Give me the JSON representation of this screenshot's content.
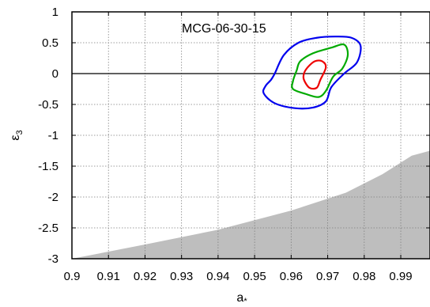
{
  "chart_data": {
    "type": "line",
    "annotation": "MCG-06-30-15",
    "xlabel": "a",
    "xlabel_sub": "*",
    "ylabel": "ε",
    "ylabel_sub": "3",
    "xlim": [
      0.9,
      0.998
    ],
    "ylim": [
      -3,
      1
    ],
    "xticks": [
      0.9,
      0.91,
      0.92,
      0.93,
      0.94,
      0.95,
      0.96,
      0.97,
      0.98,
      0.99
    ],
    "xtick_labels": [
      "0.9",
      "0.91",
      "0.92",
      "0.93",
      "0.94",
      "0.95",
      "0.96",
      "0.97",
      "0.98",
      "0.99"
    ],
    "yticks": [
      1,
      0.5,
      0,
      -0.5,
      -1,
      -1.5,
      -2,
      -2.5,
      -3
    ],
    "ytick_labels": [
      "1",
      "0.5",
      "0",
      "-0.5",
      "-1",
      "-1.5",
      "-2",
      "-2.5",
      "-3"
    ],
    "grid": true,
    "reference_line_y": 0,
    "excluded_region": {
      "color": "#bebebe",
      "boundary": [
        {
          "x": 0.9,
          "y": -3.0
        },
        {
          "x": 0.92,
          "y": -2.77
        },
        {
          "x": 0.94,
          "y": -2.53
        },
        {
          "x": 0.96,
          "y": -2.22
        },
        {
          "x": 0.975,
          "y": -1.93
        },
        {
          "x": 0.985,
          "y": -1.63
        },
        {
          "x": 0.993,
          "y": -1.33
        },
        {
          "x": 0.998,
          "y": -1.25
        }
      ]
    },
    "series": [
      {
        "color": "#0000ee",
        "points": [
          {
            "x": 0.9555,
            "y": 0.0
          },
          {
            "x": 0.958,
            "y": 0.3
          },
          {
            "x": 0.962,
            "y": 0.5
          },
          {
            "x": 0.967,
            "y": 0.58
          },
          {
            "x": 0.972,
            "y": 0.6
          },
          {
            "x": 0.9765,
            "y": 0.58
          },
          {
            "x": 0.979,
            "y": 0.45
          },
          {
            "x": 0.978,
            "y": 0.18
          },
          {
            "x": 0.9745,
            "y": 0.0
          },
          {
            "x": 0.971,
            "y": -0.22
          },
          {
            "x": 0.9695,
            "y": -0.45
          },
          {
            "x": 0.966,
            "y": -0.55
          },
          {
            "x": 0.961,
            "y": -0.56
          },
          {
            "x": 0.9555,
            "y": -0.48
          },
          {
            "x": 0.9525,
            "y": -0.32
          },
          {
            "x": 0.953,
            "y": -0.2
          },
          {
            "x": 0.9545,
            "y": -0.1
          }
        ]
      },
      {
        "color": "#00aa00",
        "points": [
          {
            "x": 0.9615,
            "y": 0.05
          },
          {
            "x": 0.9625,
            "y": 0.2
          },
          {
            "x": 0.966,
            "y": 0.33
          },
          {
            "x": 0.971,
            "y": 0.42
          },
          {
            "x": 0.9745,
            "y": 0.47
          },
          {
            "x": 0.9755,
            "y": 0.3
          },
          {
            "x": 0.974,
            "y": 0.08
          },
          {
            "x": 0.9715,
            "y": -0.05
          },
          {
            "x": 0.9695,
            "y": -0.28
          },
          {
            "x": 0.9675,
            "y": -0.38
          },
          {
            "x": 0.964,
            "y": -0.33
          },
          {
            "x": 0.9605,
            "y": -0.25
          },
          {
            "x": 0.9605,
            "y": -0.12
          }
        ]
      },
      {
        "color": "#ee0000",
        "points": [
          {
            "x": 0.9645,
            "y": 0.1
          },
          {
            "x": 0.9665,
            "y": 0.2
          },
          {
            "x": 0.9685,
            "y": 0.2
          },
          {
            "x": 0.9695,
            "y": 0.1
          },
          {
            "x": 0.968,
            "y": -0.1
          },
          {
            "x": 0.967,
            "y": -0.23
          },
          {
            "x": 0.965,
            "y": -0.23
          },
          {
            "x": 0.9635,
            "y": -0.1
          },
          {
            "x": 0.9635,
            "y": 0.0
          }
        ]
      }
    ]
  }
}
